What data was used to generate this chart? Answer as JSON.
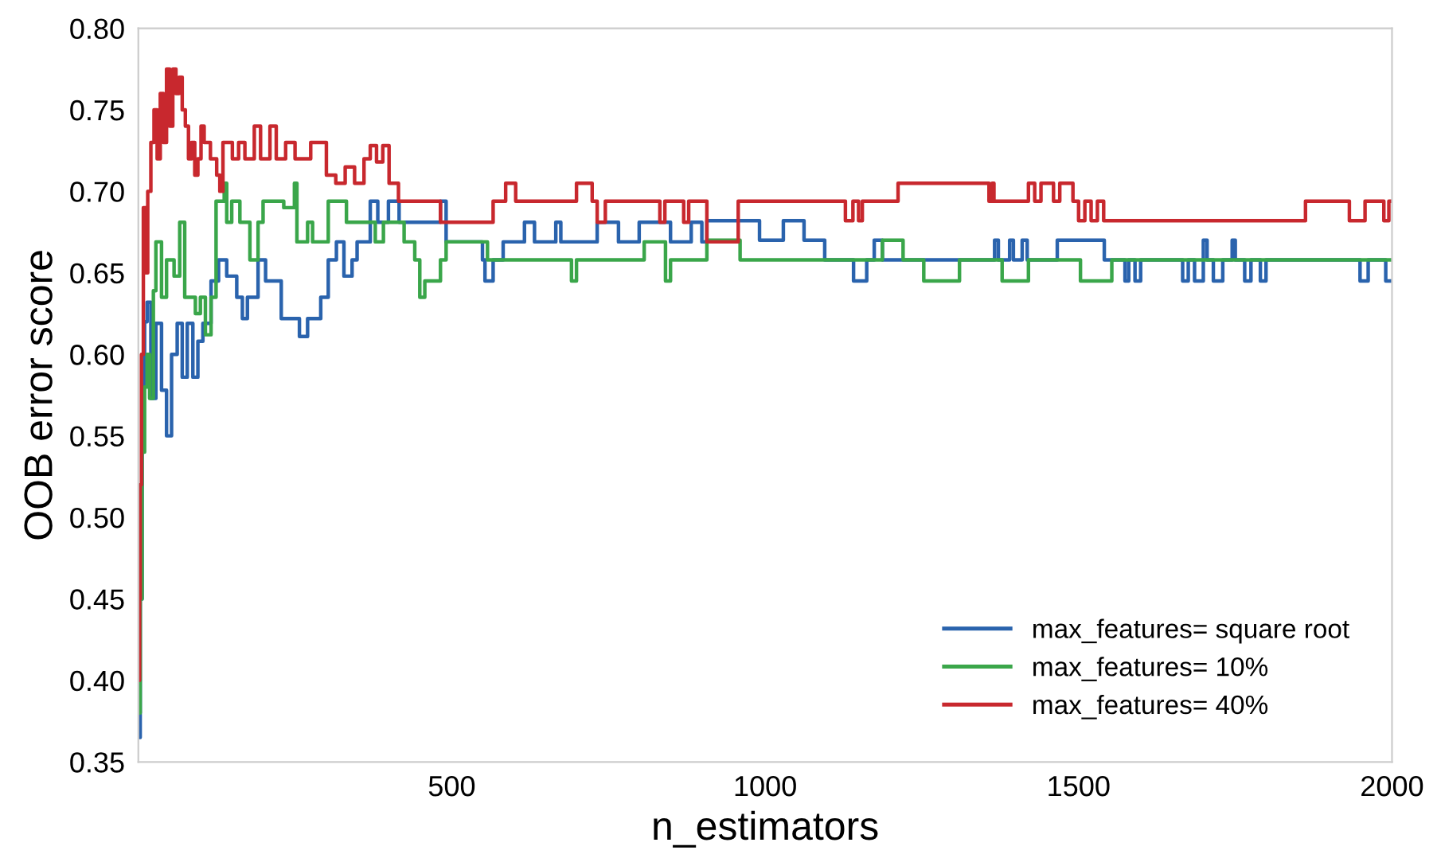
{
  "chart_data": {
    "type": "step",
    "xlabel": "n_estimators",
    "ylabel": "OOB error score",
    "xlim": [
      0,
      2000
    ],
    "ylim": [
      0.35,
      0.8
    ],
    "xticks": [
      500,
      1000,
      1500,
      2000
    ],
    "yticks": [
      {
        "value": 0.35,
        "label": "0.35"
      },
      {
        "value": 0.4,
        "label": "0.40"
      },
      {
        "value": 0.45,
        "label": "0.45"
      },
      {
        "value": 0.5,
        "label": "0.50"
      },
      {
        "value": 0.55,
        "label": "0.55"
      },
      {
        "value": 0.6,
        "label": "0.60"
      },
      {
        "value": 0.65,
        "label": "0.65"
      },
      {
        "value": 0.7,
        "label": "0.70"
      },
      {
        "value": 0.75,
        "label": "0.75"
      },
      {
        "value": 0.8,
        "label": "0.80"
      }
    ],
    "grid": false,
    "legend": "bottom right",
    "marker": "none",
    "line_style": "solid",
    "series": [
      {
        "name": "max_features= square root",
        "color": "#2a63ad",
        "x": [
          0,
          3,
          6,
          10,
          14,
          20,
          28,
          37,
          45,
          53,
          62,
          70,
          78,
          87,
          95,
          103,
          116,
          128,
          141,
          157,
          166,
          174,
          191,
          203,
          216,
          228,
          257,
          270,
          291,
          303,
          316,
          328,
          341,
          349,
          370,
          382,
          399,
          416,
          482,
          491,
          549,
          553,
          566,
          582,
          616,
          632,
          666,
          674,
          699,
          732,
          766,
          799,
          849,
          882,
          899,
          907,
          991,
          1029,
          1062,
          1095,
          1141,
          1162,
          1174,
          1187,
          1366,
          1372,
          1390,
          1396,
          1410,
          1418,
          1466,
          1541,
          1574,
          1580,
          1590,
          1599,
          1666,
          1675,
          1685,
          1699,
          1705,
          1715,
          1730,
          1745,
          1750,
          1765,
          1775,
          1790,
          1799,
          1949,
          1962,
          1990,
          2000
        ],
        "values": [
          0.365,
          0.45,
          0.58,
          0.62,
          0.632,
          0.573,
          0.619,
          0.578,
          0.55,
          0.6,
          0.619,
          0.586,
          0.619,
          0.586,
          0.608,
          0.619,
          0.645,
          0.658,
          0.648,
          0.635,
          0.622,
          0.635,
          0.658,
          0.645,
          0.645,
          0.622,
          0.611,
          0.622,
          0.635,
          0.658,
          0.669,
          0.648,
          0.658,
          0.669,
          0.694,
          0.681,
          0.694,
          0.681,
          0.694,
          0.669,
          0.658,
          0.645,
          0.658,
          0.669,
          0.681,
          0.669,
          0.681,
          0.669,
          0.669,
          0.681,
          0.669,
          0.681,
          0.669,
          0.681,
          0.669,
          0.682,
          0.67,
          0.682,
          0.67,
          0.658,
          0.645,
          0.658,
          0.67,
          0.658,
          0.67,
          0.658,
          0.67,
          0.658,
          0.67,
          0.658,
          0.67,
          0.658,
          0.645,
          0.658,
          0.645,
          0.658,
          0.645,
          0.658,
          0.645,
          0.67,
          0.658,
          0.645,
          0.658,
          0.67,
          0.658,
          0.645,
          0.658,
          0.645,
          0.658,
          0.645,
          0.658,
          0.645,
          0.645
        ]
      },
      {
        "name": "max_features= 10%",
        "color": "#3aa64a",
        "x": [
          0,
          3,
          6,
          10,
          14,
          18,
          24,
          28,
          37,
          45,
          57,
          66,
          74,
          91,
          99,
          107,
          116,
          124,
          137,
          141,
          149,
          162,
          178,
          191,
          199,
          232,
          249,
          253,
          270,
          278,
          303,
          332,
          378,
          391,
          424,
          441,
          449,
          457,
          482,
          491,
          557,
          691,
          699,
          807,
          841,
          849,
          907,
          960,
          1187,
          1220,
          1253,
          1310,
          1378,
          1420,
          1503,
          1553,
          2000
        ],
        "values": [
          0.38,
          0.45,
          0.54,
          0.58,
          0.6,
          0.573,
          0.639,
          0.669,
          0.635,
          0.658,
          0.648,
          0.681,
          0.635,
          0.625,
          0.635,
          0.612,
          0.635,
          0.694,
          0.705,
          0.681,
          0.694,
          0.681,
          0.658,
          0.681,
          0.694,
          0.69,
          0.705,
          0.669,
          0.681,
          0.669,
          0.694,
          0.681,
          0.669,
          0.681,
          0.669,
          0.658,
          0.635,
          0.645,
          0.658,
          0.669,
          0.658,
          0.645,
          0.658,
          0.669,
          0.645,
          0.658,
          0.67,
          0.658,
          0.67,
          0.658,
          0.645,
          0.658,
          0.645,
          0.658,
          0.645,
          0.658,
          0.658
        ]
      },
      {
        "name": "max_features= 40%",
        "color": "#c8282e",
        "x": [
          0,
          2,
          3,
          5,
          8,
          12,
          15,
          20,
          25,
          30,
          35,
          40,
          45,
          50,
          55,
          60,
          65,
          70,
          75,
          80,
          85,
          90,
          95,
          100,
          105,
          115,
          125,
          130,
          135,
          150,
          160,
          170,
          185,
          195,
          210,
          220,
          235,
          250,
          275,
          300,
          315,
          330,
          345,
          360,
          370,
          380,
          390,
          400,
          415,
          482,
          566,
          586,
          602,
          699,
          724,
          732,
          745,
          832,
          840,
          870,
          878,
          907,
          957,
          1128,
          1140,
          1149,
          1155,
          1212,
          1357,
          1362,
          1365,
          1420,
          1430,
          1440,
          1460,
          1470,
          1491,
          1500,
          1510,
          1520,
          1530,
          1540,
          1862,
          1932,
          1957,
          1987,
          1995,
          2000
        ],
        "values": [
          0.4,
          0.45,
          0.52,
          0.6,
          0.69,
          0.65,
          0.7,
          0.73,
          0.75,
          0.72,
          0.76,
          0.73,
          0.775,
          0.74,
          0.775,
          0.76,
          0.77,
          0.75,
          0.74,
          0.72,
          0.73,
          0.71,
          0.72,
          0.74,
          0.73,
          0.72,
          0.71,
          0.7,
          0.73,
          0.72,
          0.73,
          0.72,
          0.74,
          0.72,
          0.74,
          0.72,
          0.73,
          0.72,
          0.73,
          0.71,
          0.705,
          0.715,
          0.705,
          0.72,
          0.728,
          0.718,
          0.728,
          0.705,
          0.694,
          0.681,
          0.694,
          0.705,
          0.694,
          0.705,
          0.694,
          0.681,
          0.694,
          0.681,
          0.694,
          0.681,
          0.694,
          0.669,
          0.694,
          0.682,
          0.694,
          0.682,
          0.694,
          0.705,
          0.694,
          0.705,
          0.694,
          0.705,
          0.694,
          0.705,
          0.694,
          0.705,
          0.694,
          0.682,
          0.694,
          0.682,
          0.694,
          0.682,
          0.694,
          0.682,
          0.694,
          0.682,
          0.694,
          0.694
        ]
      }
    ]
  }
}
